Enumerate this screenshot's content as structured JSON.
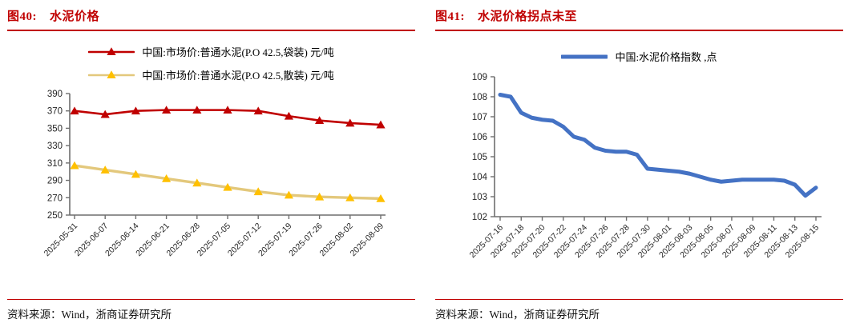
{
  "figures": [
    {
      "title_num": "图40:",
      "title_text": "水泥价格",
      "source": "资料来源：Wind，浙商证券研究所"
    },
    {
      "title_num": "图41:",
      "title_text": "水泥价格拐点未至",
      "source": "资料来源：Wind，浙商证券研究所"
    }
  ],
  "chart_data": [
    {
      "type": "line",
      "title": "水泥价格",
      "xlabel": "",
      "ylabel": "",
      "grid": false,
      "legend_position": "top",
      "ylim": [
        250,
        390
      ],
      "ytick_step": 20,
      "xtick_every": 1,
      "categories": [
        "2025-05-31",
        "2025-06-07",
        "2025-06-14",
        "2025-06-21",
        "2025-06-28",
        "2025-07-05",
        "2025-07-12",
        "2025-07-19",
        "2025-07-26",
        "2025-08-02",
        "2025-08-09"
      ],
      "series": [
        {
          "name": "中国:市场价:普通水泥(P.O 42.5,袋装) 元/吨",
          "color": "#c00000",
          "marker": "triangle",
          "marker_color": "#c00000",
          "line_width": 2.6,
          "values": [
            370,
            366,
            370,
            371,
            371,
            371,
            370,
            364,
            359,
            356,
            354
          ]
        },
        {
          "name": "中国:市场价:普通水泥(P.O 42.5,散装) 元/吨",
          "color": "#e3c87c",
          "marker": "triangle",
          "marker_color": "#ffc000",
          "line_width": 3.4,
          "values": [
            307,
            302,
            297,
            292,
            287,
            282,
            277,
            273,
            271,
            270,
            269
          ]
        }
      ]
    },
    {
      "type": "line",
      "title": "水泥价格拐点未至",
      "xlabel": "",
      "ylabel": "",
      "grid": false,
      "legend_position": "top",
      "ylim": [
        102,
        109
      ],
      "ytick_step": 1,
      "xtick_every": 2,
      "categories": [
        "2025-07-16",
        "2025-07-17",
        "2025-07-18",
        "2025-07-19",
        "2025-07-20",
        "2025-07-21",
        "2025-07-22",
        "2025-07-23",
        "2025-07-24",
        "2025-07-25",
        "2025-07-26",
        "2025-07-27",
        "2025-07-28",
        "2025-07-29",
        "2025-07-30",
        "2025-07-31",
        "2025-08-01",
        "2025-08-02",
        "2025-08-03",
        "2025-08-04",
        "2025-08-05",
        "2025-08-06",
        "2025-08-07",
        "2025-08-08",
        "2025-08-09",
        "2025-08-10",
        "2025-08-11",
        "2025-08-12",
        "2025-08-13",
        "2025-08-14",
        "2025-08-15"
      ],
      "series": [
        {
          "name": "中国:水泥价格指数 ,点",
          "color": "#4472c4",
          "marker": "none",
          "line_width": 5,
          "values": [
            108.1,
            108.0,
            107.2,
            106.95,
            106.85,
            106.8,
            106.5,
            106.0,
            105.85,
            105.45,
            105.3,
            105.25,
            105.25,
            105.1,
            104.4,
            104.35,
            104.3,
            104.25,
            104.15,
            104.0,
            103.85,
            103.75,
            103.8,
            103.85,
            103.85,
            103.85,
            103.85,
            103.8,
            103.6,
            103.05,
            103.45
          ]
        }
      ]
    }
  ]
}
